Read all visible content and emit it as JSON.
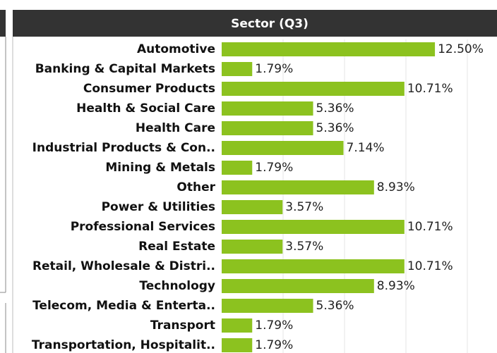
{
  "chart_data": {
    "type": "barh",
    "title": "Sector (Q3)",
    "categories": [
      "Automotive",
      "Banking & Capital Markets",
      "Consumer Products",
      "Health & Social Care",
      "Health Care",
      "Industrial Products & Con..",
      "Mining & Metals",
      "Other",
      "Power & Utilities",
      "Professional Services",
      "Real Estate",
      "Retail, Wholesale & Distri..",
      "Technology",
      "Telecom, Media & Enterta..",
      "Transport",
      "Transportation, Hospitalit.."
    ],
    "values": [
      12.5,
      1.79,
      10.71,
      5.36,
      5.36,
      7.14,
      1.79,
      8.93,
      3.57,
      10.71,
      3.57,
      10.71,
      8.93,
      5.36,
      1.79,
      1.79
    ],
    "value_labels": [
      "12.50%",
      "1.79%",
      "10.71%",
      "5.36%",
      "5.36%",
      "7.14%",
      "1.79%",
      "8.93%",
      "3.57%",
      "10.71%",
      "3.57%",
      "10.71%",
      "8.93%",
      "5.36%",
      "1.79%",
      "1.79%"
    ],
    "color": "#8cc21f",
    "xlim": [
      0,
      14.4
    ],
    "xticks": [
      3.6,
      7.2,
      10.8,
      14.4
    ],
    "grid": true
  }
}
